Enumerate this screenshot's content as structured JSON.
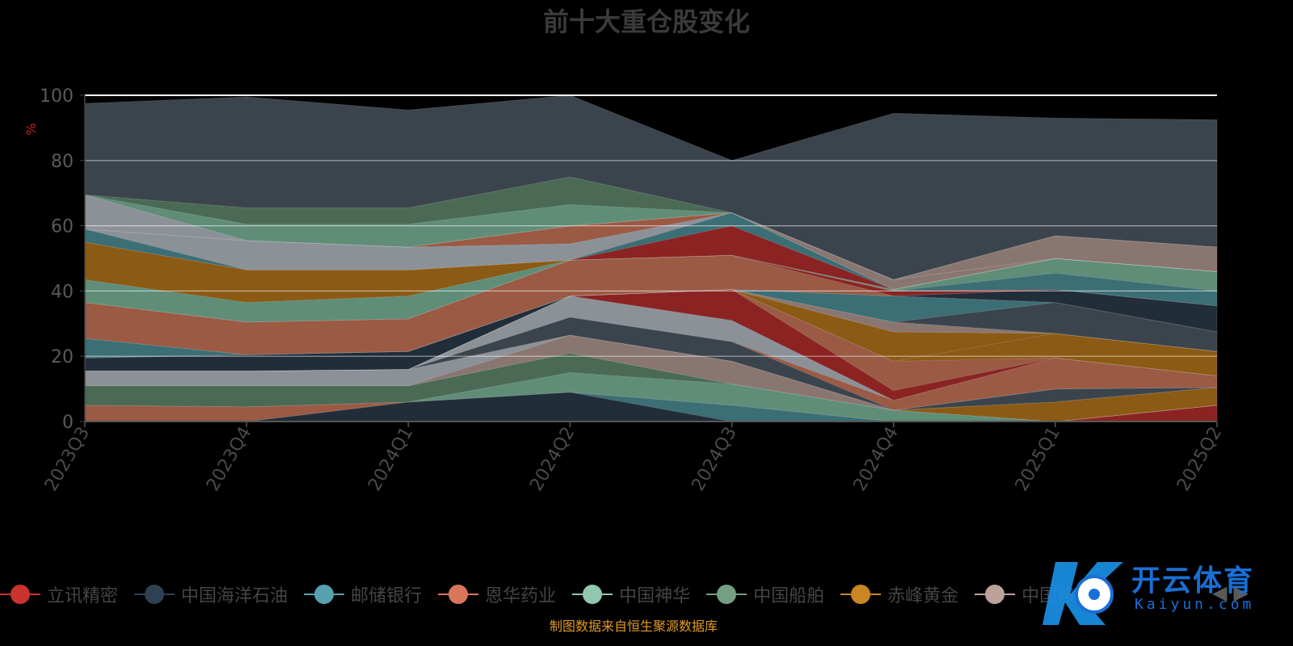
{
  "chart_data": {
    "type": "area",
    "stacked": true,
    "title": "前十大重仓股变化",
    "ylabel": "%",
    "ylim": [
      0,
      100
    ],
    "yticks": [
      0,
      20,
      40,
      60,
      80,
      100
    ],
    "grid": true,
    "categories": [
      "2023Q3",
      "2023Q4",
      "2024Q1",
      "2024Q2",
      "2024Q3",
      "2024Q4",
      "2025Q1",
      "2025Q2"
    ],
    "series": [
      {
        "name": "立讯精密",
        "values": [
          0,
          0,
          0,
          0,
          0,
          0,
          0,
          5
        ],
        "color": "#8b2323"
      },
      {
        "name": "中国海洋石油",
        "values": [
          0,
          0,
          6,
          9,
          0,
          0,
          0,
          0
        ],
        "color": "#212d38"
      },
      {
        "name": "邮储银行",
        "values": [
          0,
          0,
          0,
          0,
          5,
          0,
          0,
          0
        ],
        "color": "#3b6e75"
      },
      {
        "name": "恩华药业",
        "values": [
          5,
          4.5,
          0,
          0,
          0,
          0,
          0,
          0
        ],
        "color": "#9a5a44"
      },
      {
        "name": "中国神华",
        "values": [
          0,
          0,
          0,
          6,
          6.5,
          3.5,
          0,
          0
        ],
        "color": "#5f8d78"
      },
      {
        "name": "中国船舶",
        "values": [
          6,
          6.5,
          5,
          6,
          0,
          0,
          0,
          0
        ],
        "color": "#4a6a55"
      },
      {
        "name": "赤峰黄金",
        "values": [
          0,
          0,
          0,
          0,
          0,
          0,
          6,
          5.5
        ],
        "color": "#8b5a14"
      },
      {
        "name": "",
        "values": [
          0,
          0,
          0,
          5.5,
          7,
          0,
          0,
          0
        ],
        "color": "#8a7670"
      },
      {
        "name": "",
        "values": [
          0,
          0,
          0,
          0,
          0,
          0,
          4,
          0
        ],
        "color": "#3b444c"
      },
      {
        "name": "",
        "values": [
          4.5,
          4.5,
          5,
          0,
          0,
          0,
          0,
          0
        ],
        "color": "#8c9198"
      },
      {
        "name": "",
        "values": [
          0,
          0,
          0,
          5.5,
          6,
          0,
          0,
          0
        ],
        "color": "#3b444c"
      },
      {
        "name": "",
        "values": [
          0,
          0,
          0,
          0,
          0,
          3,
          9.5,
          3.5
        ],
        "color": "#9a5a44"
      },
      {
        "name": "",
        "values": [
          0,
          0,
          0,
          6.5,
          6.5,
          0,
          0,
          0
        ],
        "color": "#8c9198"
      },
      {
        "name": "",
        "values": [
          0,
          0,
          0,
          0,
          9.5,
          3,
          0,
          0
        ],
        "color": "#8b2323"
      },
      {
        "name": "",
        "values": [
          0,
          0,
          0,
          0,
          0,
          9,
          0,
          0
        ],
        "color": "#9a5a44"
      },
      {
        "name": "",
        "values": [
          0,
          0,
          0,
          0,
          0,
          0,
          7.5,
          7.5
        ],
        "color": "#8b5a14"
      },
      {
        "name": "",
        "values": [
          0,
          0,
          0,
          0,
          0,
          9,
          0,
          0
        ],
        "color": "#8b5a14"
      },
      {
        "name": "",
        "values": [
          4,
          5,
          5.5,
          0,
          0,
          0,
          0,
          0
        ],
        "color": "#212d38"
      },
      {
        "name": "",
        "values": [
          0,
          0,
          0,
          0,
          0,
          3,
          0,
          0
        ],
        "color": "#8a7670"
      },
      {
        "name": "",
        "values": [
          0,
          0,
          0,
          0,
          0,
          0,
          9.5,
          6
        ],
        "color": "#3b444c"
      },
      {
        "name": "",
        "values": [
          6,
          0,
          0,
          0,
          0,
          8,
          0,
          0
        ],
        "color": "#3b6e75"
      },
      {
        "name": "",
        "values": [
          0,
          0,
          0,
          0,
          0,
          0,
          4,
          8
        ],
        "color": "#212d38"
      },
      {
        "name": "",
        "values": [
          11,
          10,
          10,
          11,
          10.5,
          0,
          0,
          0
        ],
        "color": "#9a5a44"
      },
      {
        "name": "",
        "values": [
          0,
          0,
          0,
          0,
          0,
          1.5,
          0,
          0
        ],
        "color": "#8b2323"
      },
      {
        "name": "",
        "values": [
          0,
          0,
          0,
          0,
          0,
          0,
          5,
          4.5
        ],
        "color": "#3b6e75"
      },
      {
        "name": "",
        "values": [
          7,
          6,
          7,
          0,
          0,
          0.5,
          4.5,
          6
        ],
        "color": "#5f8d78"
      },
      {
        "name": "",
        "values": [
          11.5,
          10,
          8,
          0,
          0,
          0,
          0,
          0
        ],
        "color": "#8b5a14"
      },
      {
        "name": "",
        "values": [
          0,
          0,
          0,
          0,
          9,
          0,
          0,
          0
        ],
        "color": "#8b2323"
      },
      {
        "name": "",
        "values": [
          4,
          0,
          0,
          0,
          4,
          0,
          0,
          0
        ],
        "color": "#3b6e75"
      },
      {
        "name": "",
        "values": [
          0,
          9,
          7,
          5,
          0,
          0,
          0,
          0
        ],
        "color": "#8c9198"
      },
      {
        "name": "",
        "values": [
          0,
          0,
          0,
          5.5,
          0,
          0,
          0,
          0
        ],
        "color": "#9a5a44"
      },
      {
        "name": "",
        "values": [
          0,
          0,
          0,
          0,
          0,
          3,
          0,
          0
        ],
        "color": "#8a7670"
      },
      {
        "name": "",
        "values": [
          10.5,
          0,
          0,
          0,
          0,
          0,
          0,
          0
        ],
        "color": "#8c9198"
      },
      {
        "name": "",
        "values": [
          0,
          0,
          0,
          0,
          0,
          0,
          7,
          7.5
        ],
        "color": "#8a7670"
      },
      {
        "name": "",
        "values": [
          0,
          5,
          7,
          6.5,
          0,
          0,
          0,
          0
        ],
        "color": "#5f8d78"
      },
      {
        "name": "",
        "values": [
          0,
          5,
          5,
          8.5,
          0,
          0,
          0,
          0
        ],
        "color": "#4a6a55"
      },
      {
        "name": "",
        "values": [
          28,
          34,
          30,
          27,
          16,
          51,
          36,
          39
        ],
        "color": "#3b444c"
      }
    ]
  },
  "legend": {
    "items": [
      {
        "name": "立讯精密",
        "color": "#c9322e"
      },
      {
        "name": "中国海洋石油",
        "color": "#2e4153"
      },
      {
        "name": "邮储银行",
        "color": "#56a0b0"
      },
      {
        "name": "恩华药业",
        "color": "#d9765a"
      },
      {
        "name": "中国神华",
        "color": "#91c7ae"
      },
      {
        "name": "中国船舶",
        "color": "#749f83"
      },
      {
        "name": "赤峰黄金",
        "color": "#ca8622"
      },
      {
        "name": "中国移动",
        "color": "#bda29a"
      }
    ],
    "nav_prev": "◀",
    "nav_next": "▶"
  },
  "watermark": {
    "main": "开云体育",
    "sub": "Kaiyun.com"
  },
  "source": "制图数据来自恒生聚源数据库"
}
